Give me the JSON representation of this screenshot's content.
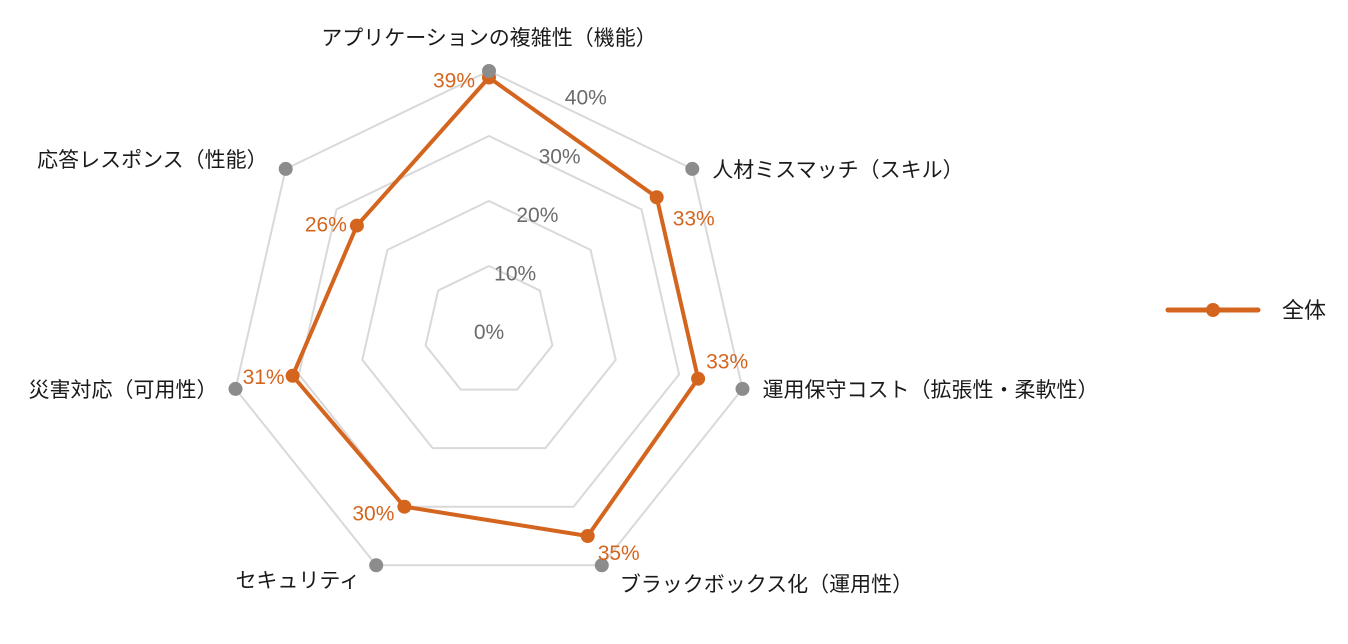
{
  "chart_data": {
    "type": "radar",
    "categories": [
      "アプリケーションの複雑性（機能）",
      "人材ミスマッチ（スキル）",
      "運用保守コスト（拡張性・柔軟性）",
      "ブラックボックス化（運用性）",
      "セキュリティ",
      "災害対応（可用性）",
      "応答レスポンス（性能）"
    ],
    "series": [
      {
        "name": "全体",
        "values": [
          39,
          33,
          33,
          35,
          30,
          31,
          26
        ],
        "data_labels": [
          "39%",
          "33%",
          "33%",
          "35%",
          "30%",
          "31%",
          "26%"
        ]
      }
    ],
    "r_ticks": [
      0,
      10,
      20,
      30,
      40
    ],
    "r_tick_labels": [
      "0%",
      "10%",
      "20%",
      "30%",
      "40%"
    ],
    "rlim": [
      0,
      40
    ],
    "legend_position": "right",
    "colors": {
      "series": "#d4651f",
      "grid": "#d9d9d9",
      "axis_marker": "#8c8c8c",
      "tick_text": "#6b6b6b"
    }
  }
}
